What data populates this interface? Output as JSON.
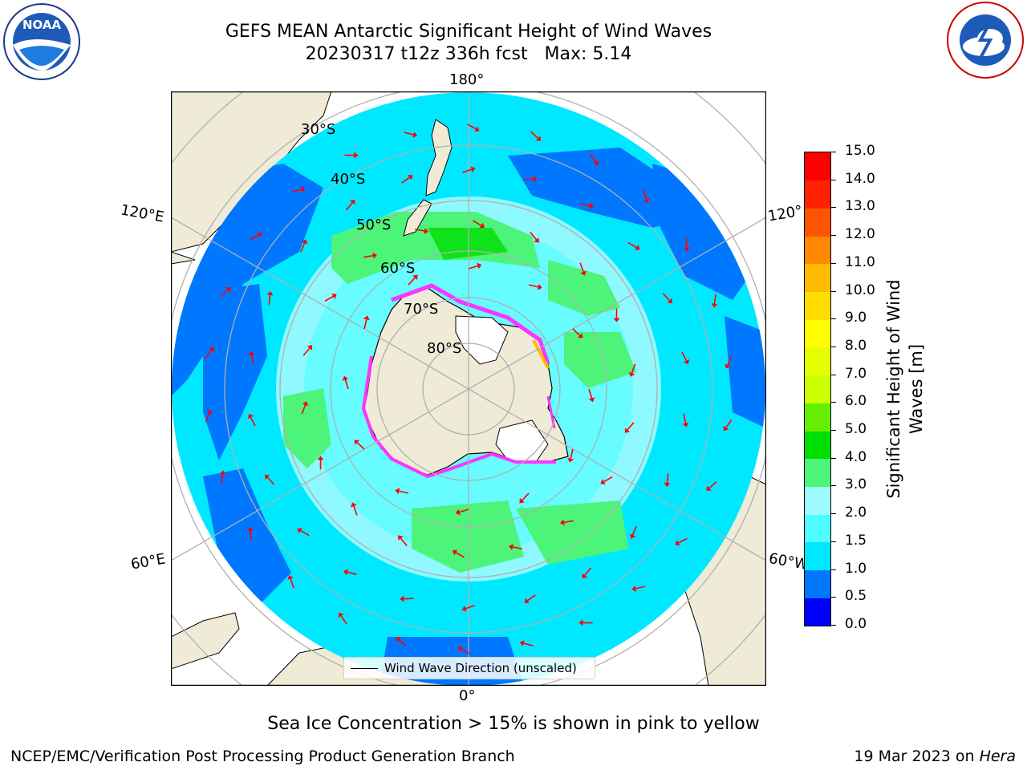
{
  "title": {
    "line1": "GEFS MEAN Antarctic Significant Height of Wind Waves",
    "line2": "20230317 t12z 336h fcst   Max: 5.14"
  },
  "map": {
    "projection": "south-polar-stereographic",
    "longitude_labels": {
      "top": "180°",
      "bottom": "0°",
      "left_upper": "120°E",
      "left_lower": "60°E",
      "right_upper": "120°",
      "right_lower": "60°W"
    },
    "latitude_labels": [
      "30°S",
      "40°S",
      "50°S",
      "60°S",
      "70°S",
      "80°S"
    ],
    "legend_text": "Wind Wave Direction (unscaled)",
    "colors": {
      "land": "#efebd6",
      "deep_ocean": "#0077ff",
      "mid_ocean": "#00e8ff",
      "light_ocean": "#9efbff",
      "green": "#4cf47a",
      "arrow": "#ff0000",
      "ice": "#ff33ff"
    }
  },
  "colorbar": {
    "label": "Significant Height of Wind Waves [m]",
    "ticks": [
      "0.0",
      "0.5",
      "1.0",
      "1.5",
      "2.0",
      "3.0",
      "4.0",
      "5.0",
      "6.0",
      "7.0",
      "8.0",
      "9.0",
      "10.0",
      "11.0",
      "12.0",
      "13.0",
      "14.0",
      "15.0"
    ],
    "colors": [
      "#0000ff",
      "#0077ff",
      "#00e8ff",
      "#4dfdff",
      "#9efbff",
      "#4cf47a",
      "#00dd00",
      "#66ee00",
      "#ccff00",
      "#e6ff00",
      "#ffff00",
      "#ffdd00",
      "#ffbb00",
      "#ff8800",
      "#ff5500",
      "#ff2200",
      "#ff0000"
    ]
  },
  "note": "Sea Ice Concentration > 15% is shown in pink to yellow",
  "footer": {
    "left": "NCEP/EMC/Verification Post Processing Product Generation Branch",
    "right_prefix": "19 Mar 2023 on ",
    "right_italic": "Hera"
  },
  "logos": {
    "left": "NOAA",
    "right": "NATIONAL WEATHER SERVICE"
  }
}
